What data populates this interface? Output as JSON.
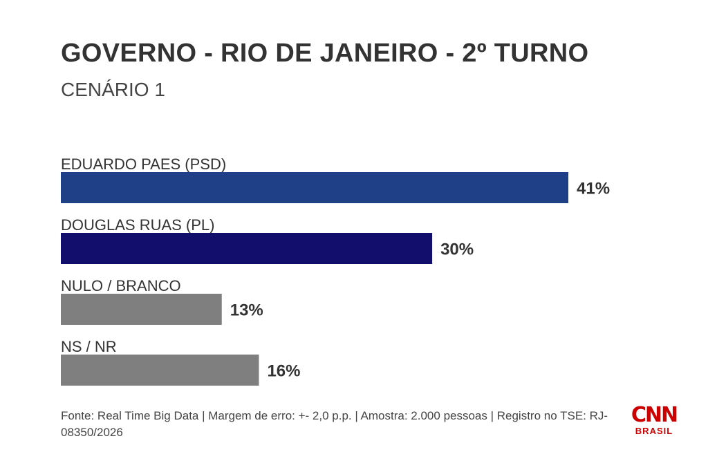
{
  "chart_data": {
    "type": "bar",
    "orientation": "horizontal",
    "title": "GOVERNO - RIO DE JANEIRO - 2º TURNO",
    "subtitle": "CENÁRIO 1",
    "categories": [
      "EDUARDO PAES (PSD)",
      "DOUGLAS RUAS (PL)",
      "NULO / BRANCO",
      "NS / NR"
    ],
    "values": [
      41,
      30,
      13,
      16
    ],
    "value_labels": [
      "41%",
      "30%",
      "13%",
      "16%"
    ],
    "colors": [
      "#1f3f86",
      "#120e6b",
      "#7f7f7f",
      "#7f7f7f"
    ],
    "unit": "%",
    "grid": false,
    "legend": "none"
  },
  "footer": {
    "source": "Fonte: Real Time Big Data | Margem de erro: +- 2,0 p.p. | Amostra: 2.000 pessoas | Registro no TSE: RJ-08350/2026"
  },
  "logo": {
    "brand": "CNN",
    "region": "BRASIL",
    "color": "#cc0000"
  }
}
